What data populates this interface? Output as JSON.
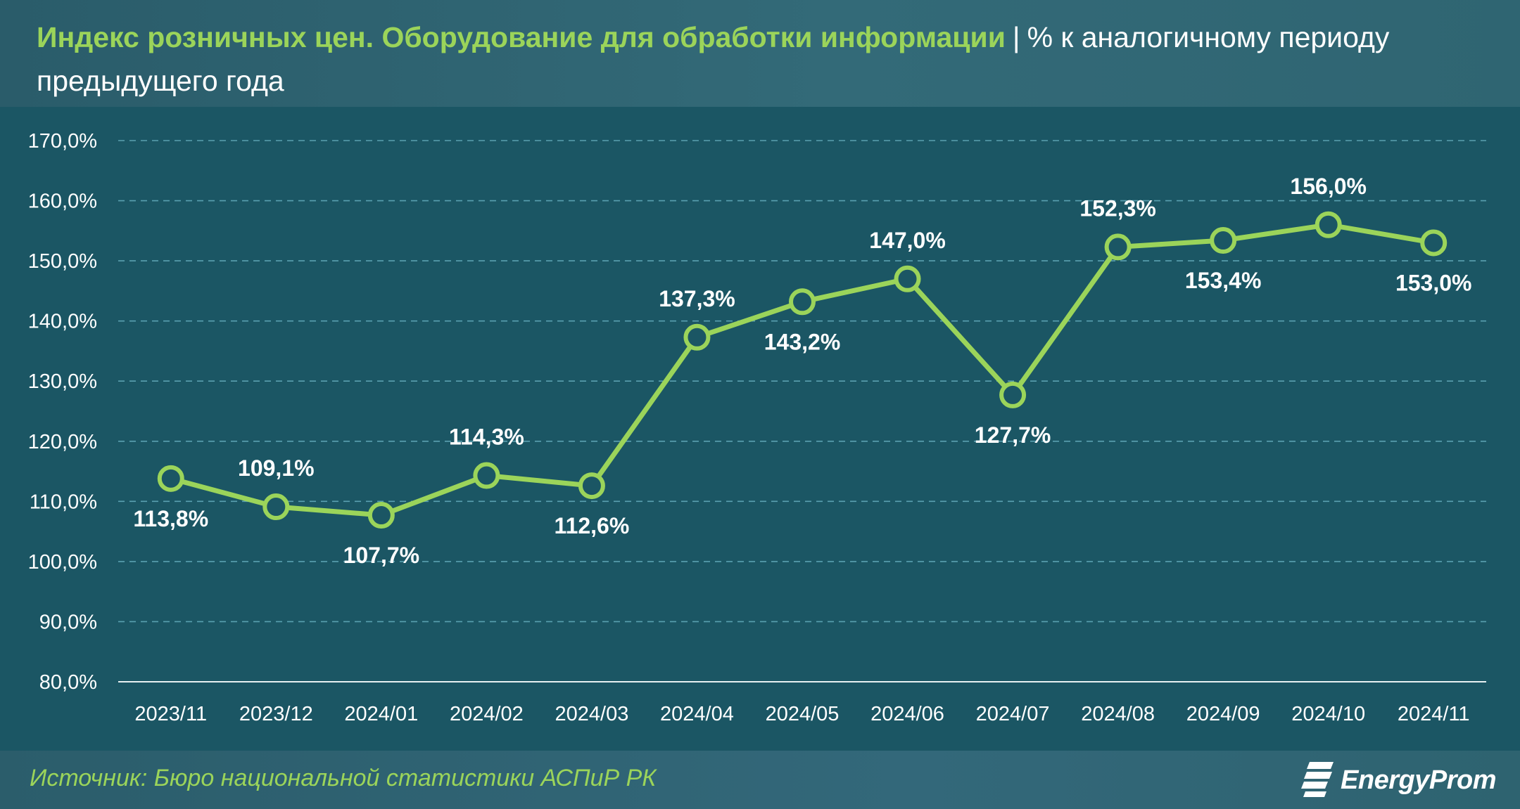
{
  "header": {
    "title_main": "Индекс розничных цен. Оборудование для обработки информации",
    "separator": "|",
    "title_unit": "% к аналогичному периоду предыдущего года"
  },
  "footer": {
    "source": "Источник: Бюро национальной статистики АСПиР РК",
    "logo_text": "EnergyProm"
  },
  "colors": {
    "background": "#1b5664",
    "accent": "#9bd45a",
    "line": "#9bd45a",
    "marker_fill": "#1b5664",
    "gridline": "#5aa0b0",
    "text": "#ffffff"
  },
  "chart_data": {
    "type": "line",
    "categories": [
      "2023/11",
      "2023/12",
      "2024/01",
      "2024/02",
      "2024/03",
      "2024/04",
      "2024/05",
      "2024/06",
      "2024/07",
      "2024/08",
      "2024/09",
      "2024/10",
      "2024/11"
    ],
    "series": [
      {
        "values": [
          113.8,
          109.1,
          107.7,
          114.3,
          112.6,
          137.3,
          143.2,
          147.0,
          127.7,
          152.3,
          153.4,
          156.0,
          153.0
        ],
        "labels": [
          "113,8%",
          "109,1%",
          "107,7%",
          "114,3%",
          "112,6%",
          "137,3%",
          "143,2%",
          "147,0%",
          "127,7%",
          "152,3%",
          "153,4%",
          "156,0%",
          "153,0%"
        ],
        "label_positions": [
          "below",
          "above",
          "below",
          "above",
          "below",
          "above",
          "below",
          "above",
          "below",
          "above",
          "below",
          "above",
          "below"
        ]
      }
    ],
    "yticks": [
      "80,0%",
      "90,0%",
      "100,0%",
      "110,0%",
      "120,0%",
      "130,0%",
      "140,0%",
      "150,0%",
      "160,0%",
      "170,0%"
    ],
    "ylim": [
      80,
      170
    ],
    "grid": true,
    "legend": "none"
  }
}
